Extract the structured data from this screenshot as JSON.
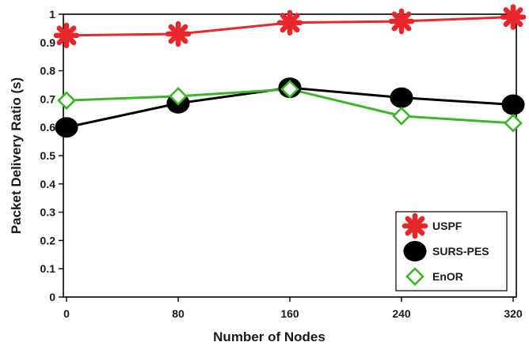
{
  "chart_data": {
    "type": "line",
    "title": "",
    "xlabel": "Number of Nodes",
    "ylabel": "Packet Delivery Ratio (s)",
    "categories": [
      "0",
      "80",
      "160",
      "240",
      "320"
    ],
    "x": [
      0,
      80,
      160,
      240,
      320
    ],
    "ylim": [
      0,
      1
    ],
    "yticks": [
      "0",
      "0.1",
      "0.2",
      "0.3",
      "0.4",
      "0.5",
      "0.6",
      "0.7",
      "0.8",
      "0.9",
      "1"
    ],
    "grid": false,
    "legend_position": "bottom-right",
    "series": [
      {
        "name": "USPF",
        "values": [
          0.925,
          0.93,
          0.97,
          0.975,
          0.99
        ],
        "color": "#e8272c",
        "marker": "asterisk"
      },
      {
        "name": "SURS-PES",
        "values": [
          0.6,
          0.685,
          0.74,
          0.705,
          0.68
        ],
        "color": "#000000",
        "marker": "filled-circle"
      },
      {
        "name": "EnOR",
        "values": [
          0.695,
          0.71,
          0.735,
          0.64,
          0.615
        ],
        "color": "#3cb52a",
        "marker": "open-diamond"
      }
    ]
  }
}
